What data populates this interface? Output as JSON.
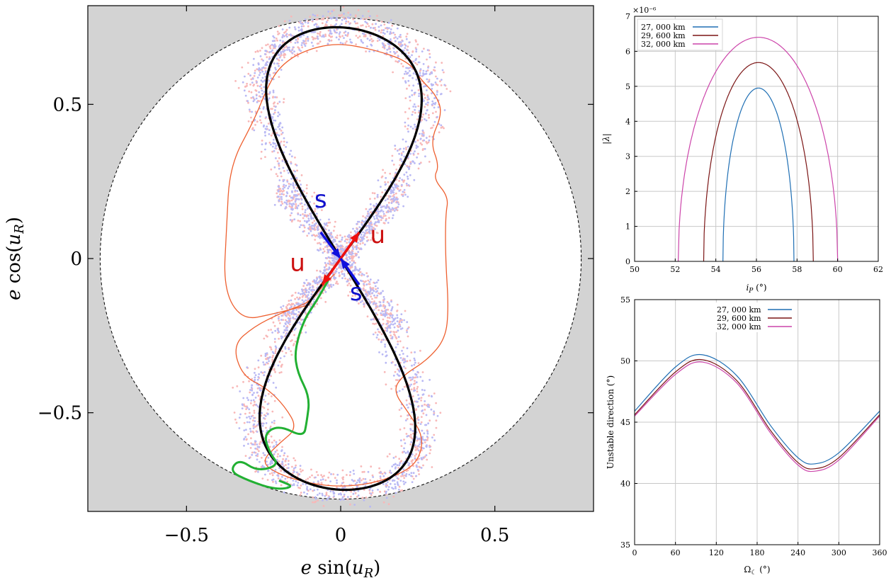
{
  "chart_data": [
    {
      "type": "scatter",
      "xlabel": "e sin(u_R)",
      "ylabel": "e cos(u_R)",
      "xlim": [
        -0.82,
        0.82
      ],
      "ylim": [
        -0.82,
        0.82
      ],
      "xticks": [
        -0.5,
        0,
        0.5
      ],
      "yticks": [
        0.5,
        0,
        -0.5
      ],
      "xtick_labels": [
        "−0.5",
        "0",
        "0.5"
      ],
      "ytick_labels": [
        "0.5",
        "0",
        "−0.5"
      ],
      "boundary_radius": 0.78,
      "outside_color": "#d3d3d3",
      "separatrix": {
        "ymax": 0.75,
        "xmax": 0.265,
        "color": "#000000"
      },
      "branch_labels": [
        {
          "text": "s",
          "x": -0.065,
          "y": 0.165,
          "color": "#1010cc"
        },
        {
          "text": "u",
          "x": 0.12,
          "y": 0.05,
          "color": "#cc1010"
        },
        {
          "text": "u",
          "x": -0.14,
          "y": -0.04,
          "color": "#cc1010"
        },
        {
          "text": "s",
          "x": 0.05,
          "y": -0.135,
          "color": "#1010cc"
        }
      ],
      "arrows": [
        {
          "from": [
            -0.065,
            0.085
          ],
          "to": [
            0,
            0
          ],
          "color": "#1010dd"
        },
        {
          "from": [
            0,
            0
          ],
          "to": [
            0.06,
            0.085
          ],
          "color": "#ee1010"
        },
        {
          "from": [
            0,
            0
          ],
          "to": [
            -0.06,
            -0.085
          ],
          "color": "#ee1010"
        },
        {
          "from": [
            0.06,
            -0.085
          ],
          "to": [
            0,
            0
          ],
          "color": "#1010dd"
        }
      ],
      "colors": {
        "blue_cloud": "#b9b9f4",
        "red_cloud": "#f8b8b8",
        "orange_trajectory": "#ee6030",
        "green_trajectory": "#22b033"
      },
      "green_trajectory": [
        [
          -0.04,
          -0.07
        ],
        [
          -0.08,
          -0.14
        ],
        [
          -0.12,
          -0.2
        ],
        [
          -0.15,
          -0.3
        ],
        [
          -0.14,
          -0.37
        ],
        [
          -0.1,
          -0.45
        ],
        [
          -0.11,
          -0.53
        ],
        [
          -0.12,
          -0.58
        ],
        [
          -0.2,
          -0.54
        ],
        [
          -0.25,
          -0.57
        ],
        [
          -0.23,
          -0.63
        ],
        [
          -0.2,
          -0.67
        ],
        [
          -0.27,
          -0.69
        ],
        [
          -0.33,
          -0.65
        ],
        [
          -0.36,
          -0.69
        ],
        [
          -0.3,
          -0.72
        ],
        [
          -0.21,
          -0.75
        ],
        [
          -0.15,
          -0.74
        ],
        [
          -0.2,
          -0.72
        ]
      ],
      "orange_trajectory": [
        [
          -0.02,
          -0.05
        ],
        [
          -0.05,
          -0.08
        ],
        [
          -0.1,
          -0.14
        ],
        [
          -0.15,
          -0.16
        ],
        [
          -0.2,
          -0.18
        ],
        [
          -0.28,
          -0.22
        ],
        [
          -0.35,
          -0.28
        ],
        [
          -0.32,
          -0.38
        ],
        [
          -0.24,
          -0.42
        ],
        [
          -0.18,
          -0.48
        ],
        [
          -0.14,
          -0.55
        ],
        [
          -0.2,
          -0.6
        ],
        [
          -0.26,
          -0.66
        ],
        [
          -0.2,
          -0.7
        ],
        [
          -0.1,
          -0.73
        ],
        [
          0,
          -0.74
        ],
        [
          0.1,
          -0.73
        ],
        [
          0.19,
          -0.7
        ],
        [
          0.25,
          -0.66
        ],
        [
          0.27,
          -0.58
        ],
        [
          0.22,
          -0.5
        ],
        [
          0.17,
          -0.43
        ],
        [
          0.2,
          -0.38
        ],
        [
          0.28,
          -0.33
        ],
        [
          0.34,
          -0.26
        ],
        [
          0.35,
          -0.16
        ],
        [
          0.34,
          0
        ],
        [
          0.34,
          0.14
        ],
        [
          0.35,
          0.2
        ],
        [
          0.3,
          0.26
        ],
        [
          0.32,
          0.3
        ],
        [
          0.29,
          0.38
        ],
        [
          0.33,
          0.47
        ],
        [
          0.31,
          0.53
        ],
        [
          0.26,
          0.58
        ],
        [
          0.22,
          0.64
        ],
        [
          0.1,
          0.68
        ],
        [
          -0.02,
          0.7
        ],
        [
          -0.13,
          0.67
        ],
        [
          -0.2,
          0.62
        ],
        [
          -0.24,
          0.55
        ],
        [
          -0.28,
          0.45
        ],
        [
          -0.36,
          0.3
        ],
        [
          -0.37,
          0.1
        ],
        [
          -0.38,
          -0.1
        ],
        [
          -0.32,
          -0.2
        ],
        [
          -0.22,
          -0.18
        ],
        [
          -0.1,
          -0.15
        ]
      ]
    },
    {
      "type": "line",
      "xlabel": "i_P (°)",
      "ylabel": "|λ|",
      "exponent_label": "×10⁻⁶",
      "xlim": [
        50,
        62
      ],
      "ylim": [
        0,
        7
      ],
      "xticks": [
        50,
        52,
        54,
        56,
        58,
        60,
        62
      ],
      "yticks": [
        0,
        1,
        2,
        3,
        4,
        5,
        6,
        7
      ],
      "grid": true,
      "legend": "top-left",
      "series": [
        {
          "name": "27, 000 km",
          "color": "#1f6fb4",
          "center": 56.1,
          "peak": 4.95,
          "left": 54.35,
          "right": 57.85
        },
        {
          "name": "29, 600 km",
          "color": "#7b1515",
          "center": 56.1,
          "peak": 5.68,
          "left": 53.4,
          "right": 58.8
        },
        {
          "name": "32, 000 km",
          "color": "#cc44aa",
          "center": 56.1,
          "peak": 6.4,
          "left": 52.15,
          "right": 60.0
        }
      ]
    },
    {
      "type": "line",
      "xlabel": "Ω☾ (°)",
      "ylabel": "Unstable direction (°)",
      "xlim": [
        0,
        360
      ],
      "ylim": [
        35,
        55
      ],
      "xticks": [
        0,
        60,
        120,
        180,
        240,
        300,
        360
      ],
      "yticks": [
        35,
        40,
        45,
        50,
        55
      ],
      "grid": true,
      "legend": "top-center",
      "series": [
        {
          "name": "27, 000 km",
          "color": "#1f6fb4",
          "x": [
            0,
            60,
            100,
            150,
            200,
            240,
            265,
            300,
            360
          ],
          "y": [
            45.9,
            49.5,
            50.5,
            48.8,
            44.7,
            42.1,
            41.6,
            42.5,
            45.9
          ]
        },
        {
          "name": "29, 600 km",
          "color": "#7b1515",
          "x": [
            0,
            60,
            100,
            150,
            200,
            240,
            265,
            300,
            360
          ],
          "y": [
            45.6,
            49.1,
            50.1,
            48.4,
            44.3,
            41.7,
            41.2,
            42.1,
            45.6
          ]
        },
        {
          "name": "32, 000 km",
          "color": "#cc44aa",
          "x": [
            0,
            60,
            100,
            150,
            200,
            240,
            265,
            300,
            360
          ],
          "y": [
            45.5,
            48.9,
            49.9,
            48.2,
            44.1,
            41.5,
            41.0,
            41.9,
            45.5
          ]
        }
      ]
    }
  ]
}
